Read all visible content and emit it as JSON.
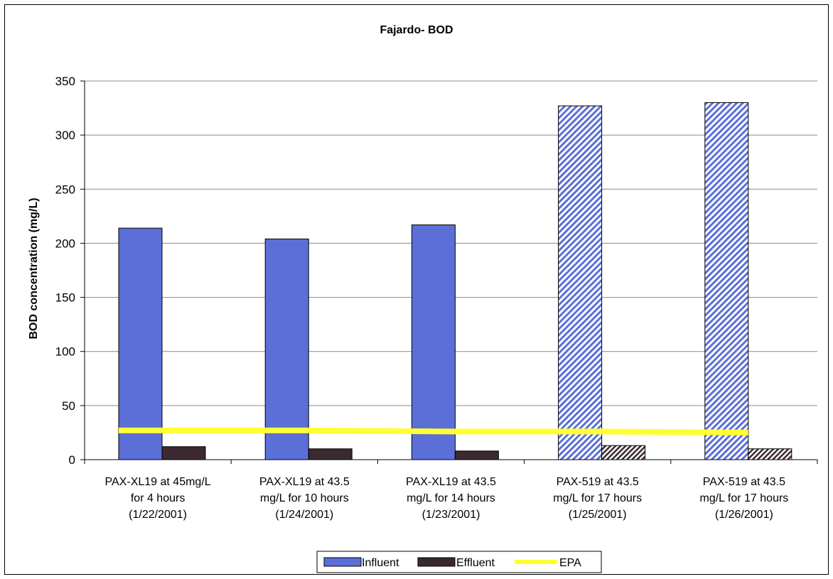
{
  "chart_data": {
    "type": "bar",
    "title": "Fajardo- BOD",
    "ylabel": "BOD concentration (mg/L)",
    "xlabel": "",
    "ylim": [
      0,
      350
    ],
    "yticks": [
      0,
      50,
      100,
      150,
      200,
      250,
      300,
      350
    ],
    "grid": true,
    "legend_position": "bottom",
    "categories": [
      [
        "PAX-XL19 at 45mg/L",
        "for 4 hours",
        "(1/22/2001)"
      ],
      [
        "PAX-XL19 at 43.5",
        "mg/L for 10 hours",
        "(1/24/2001)"
      ],
      [
        "PAX-XL19 at 43.5",
        "mg/L for 14 hours",
        "(1/23/2001)"
      ],
      [
        "PAX-519 at 43.5",
        "mg/L for 17 hours",
        "(1/25/2001)"
      ],
      [
        "PAX-519 at 43.5",
        "mg/L for 17 hours",
        "(1/26/2001)"
      ]
    ],
    "hatched_categories": [
      3,
      4
    ],
    "series": [
      {
        "name": "Influent",
        "kind": "bar",
        "color": "#5b6fd6",
        "values": [
          214,
          204,
          217,
          327,
          330
        ]
      },
      {
        "name": "Effluent",
        "kind": "bar",
        "color": "#3a2a30",
        "values": [
          12,
          10,
          8,
          13,
          10
        ]
      },
      {
        "name": "EPA",
        "kind": "line",
        "color": "#ffff33",
        "values": [
          27,
          27,
          26,
          26,
          25
        ]
      }
    ]
  }
}
